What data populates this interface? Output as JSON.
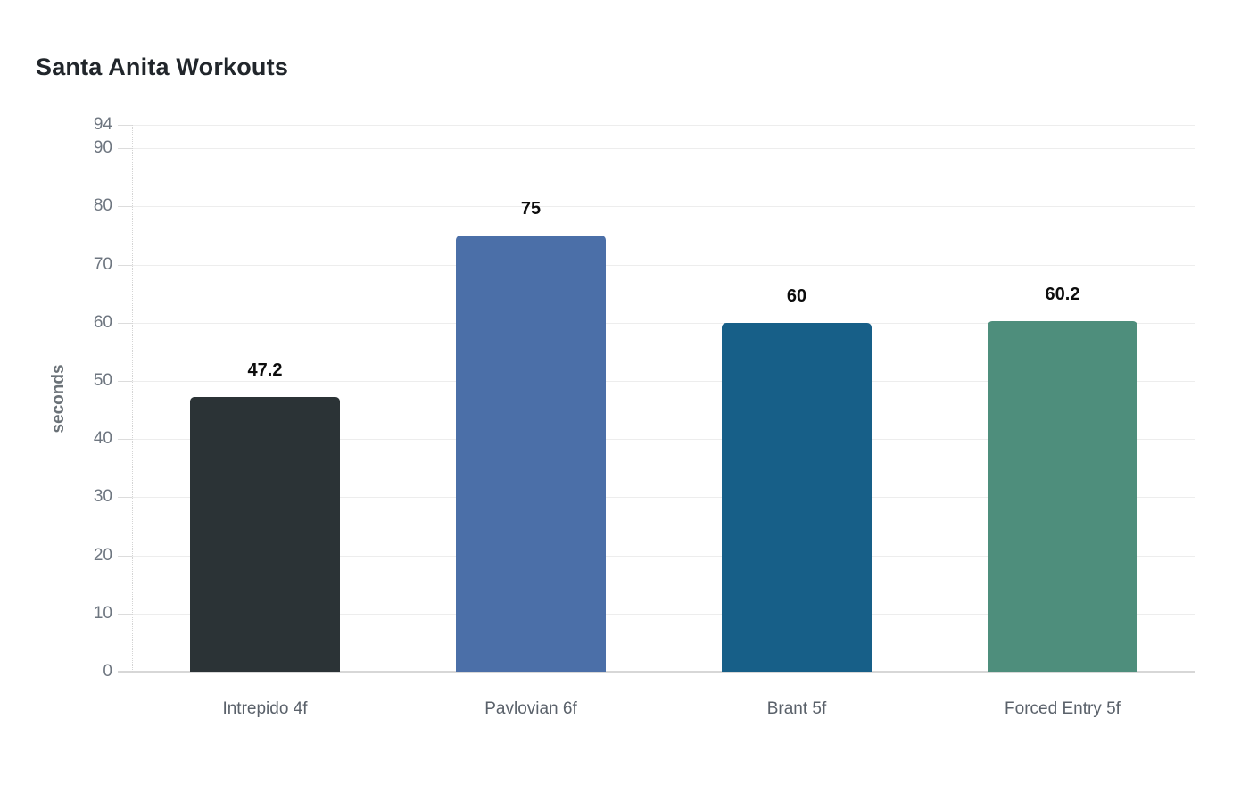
{
  "chart": {
    "title": "Santa Anita Workouts",
    "ylabel": "seconds"
  },
  "chart_data": {
    "type": "bar",
    "title": "Santa Anita Workouts",
    "xlabel": "",
    "ylabel": "seconds",
    "categories": [
      "Intrepido 4f",
      "Pavlovian 6f",
      "Brant 5f",
      "Forced Entry 5f"
    ],
    "values": [
      47.2,
      75,
      60,
      60.2
    ],
    "value_labels": [
      "47.2",
      "75",
      "60",
      "60.2"
    ],
    "bar_colors": [
      "#2b3336",
      "#4b6fa8",
      "#175f88",
      "#4e8e7c"
    ],
    "ylim": [
      0,
      94
    ],
    "yticks": [
      0,
      10,
      20,
      30,
      40,
      50,
      60,
      70,
      80,
      90,
      94
    ],
    "grid": "horizontal-only",
    "legend": "none",
    "background": "#ffffff"
  }
}
